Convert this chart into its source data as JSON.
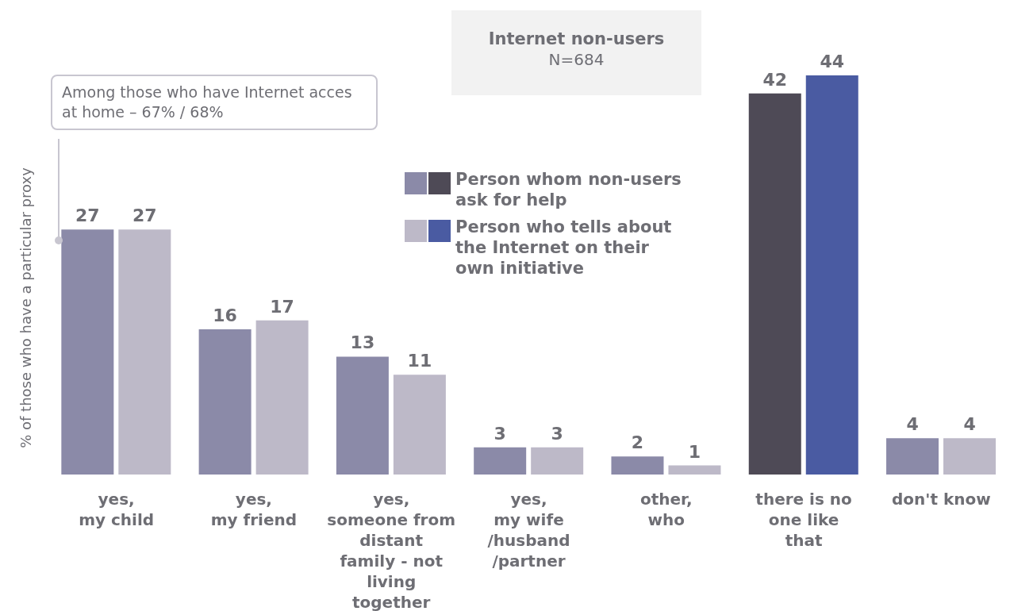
{
  "chart_data": {
    "type": "bar",
    "title": "Internet non-users",
    "subtitle": "N=684",
    "ylabel": "% of those who have a particular proxy",
    "categories": [
      "yes, my child",
      "yes, my friend",
      "yes, someone from distant family - not living together",
      "yes, my wife /husband /partner",
      "other, who",
      "there is no one like that",
      "don't know"
    ],
    "series": [
      {
        "name": "Person whom non-users ask for help",
        "colors": [
          "#8b8aa8",
          "#8b8aa8",
          "#8b8aa8",
          "#8b8aa8",
          "#8b8aa8",
          "#4e4a56",
          "#8b8aa8"
        ],
        "values": [
          27,
          16,
          13,
          3,
          2,
          42,
          4
        ]
      },
      {
        "name": "Person who tells about the Internet on their own initiative",
        "colors": [
          "#bdb9c8",
          "#bdb9c8",
          "#bdb9c8",
          "#bdb9c8",
          "#bdb9c8",
          "#4a5ba2",
          "#bdb9c8"
        ],
        "values": [
          27,
          17,
          11,
          3,
          1,
          44,
          4
        ]
      }
    ],
    "annotations": [
      "Among those who have Internet acces at home – 67% / 68%"
    ],
    "data_labels": true,
    "legend": "top",
    "grid": false
  }
}
